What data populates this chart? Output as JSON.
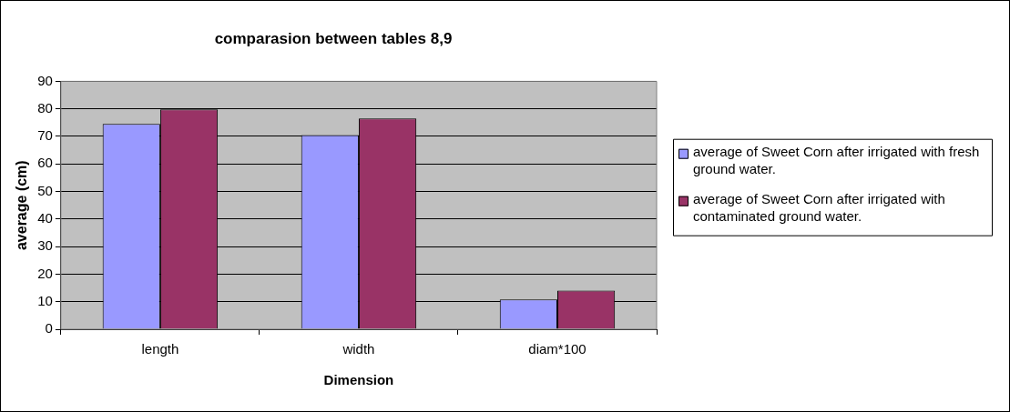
{
  "chart_data": {
    "type": "bar",
    "title": "comparasion between tables 8,9",
    "xlabel": "Dimension",
    "ylabel": "average (cm)",
    "categories": [
      "length",
      "width",
      "diam*100"
    ],
    "series": [
      {
        "name": "average of Sweet Corn after irrigated with fresh ground water.",
        "color": "#9999ff",
        "values": [
          74.5,
          70.5,
          10.8
        ]
      },
      {
        "name": "average of Sweet Corn after irrigated with contaminated ground water.",
        "color": "#993366",
        "values": [
          79.8,
          76.5,
          14
        ]
      }
    ],
    "ylim": [
      0,
      90
    ],
    "yticks": [
      0,
      10,
      20,
      30,
      40,
      50,
      60,
      70,
      80,
      90
    ],
    "grid": "y",
    "legend": "right"
  }
}
